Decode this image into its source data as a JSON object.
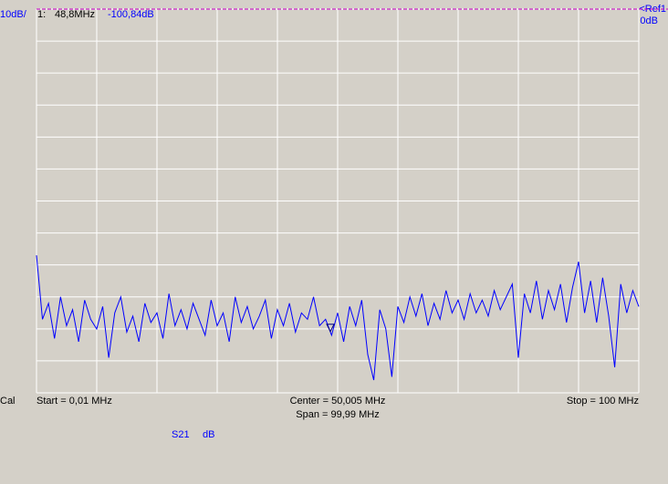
{
  "chart_data": {
    "type": "line",
    "scale_label": "10dB/",
    "ref_label": "<Ref1",
    "ref_value_label": "0dB",
    "ref_level": 0,
    "status": "Cal",
    "start_label": "Start = 0,01 MHz",
    "center_label": "Center = 50,005 MHz",
    "span_label": "Span = 99,99 MHz",
    "stop_label": "Stop = 100 MHz",
    "marker": {
      "label": "1:",
      "x": 48.8,
      "x_label": "48,8MHz",
      "y": -100.84,
      "y_label": "-100,84dB"
    },
    "xlim": [
      0.01,
      100
    ],
    "ylim": [
      -120,
      0
    ],
    "xticks": [
      0.01,
      10.009,
      20.008,
      30.007,
      40.006,
      50.005,
      60.004,
      70.003,
      80.002,
      90.001,
      100
    ],
    "yticks": [
      -120,
      -110,
      -100,
      -90,
      -80,
      -70,
      -60,
      -50,
      -40,
      -30,
      -20,
      -10,
      0
    ],
    "grid": true,
    "x": [
      0.01,
      1,
      2,
      3,
      4,
      5,
      6,
      7,
      8,
      9,
      10,
      11,
      12,
      13,
      14,
      15,
      16,
      17,
      18,
      19,
      20,
      21,
      22,
      23,
      24,
      25,
      26,
      27,
      28,
      29,
      30,
      31,
      32,
      33,
      34,
      35,
      36,
      37,
      38,
      39,
      40,
      41,
      42,
      43,
      44,
      45,
      46,
      47,
      48,
      49,
      50,
      51,
      52,
      53,
      54,
      55,
      56,
      57,
      58,
      59,
      60,
      61,
      62,
      63,
      64,
      65,
      66,
      67,
      68,
      69,
      70,
      71,
      72,
      73,
      74,
      75,
      76,
      77,
      78,
      79,
      80,
      81,
      82,
      83,
      84,
      85,
      86,
      87,
      88,
      89,
      90,
      91,
      92,
      93,
      94,
      95,
      96,
      97,
      98,
      99,
      100
    ],
    "series": [
      {
        "name": "S21",
        "unit": "dB",
        "color": "#0000ff",
        "values": [
          -77,
          -97,
          -92,
          -103,
          -90,
          -99,
          -94,
          -104,
          -91,
          -97,
          -100,
          -93,
          -109,
          -95,
          -90,
          -101,
          -96,
          -104,
          -92,
          -98,
          -95,
          -103,
          -89,
          -99,
          -94,
          -100,
          -92,
          -97,
          -102,
          -91,
          -99,
          -95,
          -104,
          -90,
          -98,
          -93,
          -100,
          -96,
          -91,
          -103,
          -94,
          -99,
          -92,
          -101,
          -95,
          -97,
          -90,
          -99,
          -97,
          -102,
          -95,
          -104,
          -93,
          -99,
          -91,
          -108,
          -116,
          -94,
          -100,
          -115,
          -93,
          -98,
          -90,
          -96,
          -89,
          -99,
          -92,
          -97,
          -88,
          -95,
          -91,
          -97,
          -89,
          -95,
          -91,
          -96,
          -88,
          -94,
          -90,
          -86,
          -109,
          -89,
          -95,
          -85,
          -97,
          -88,
          -94,
          -86,
          -98,
          -87,
          -79,
          -95,
          -85,
          -98,
          -84,
          -96,
          -112,
          -86,
          -95,
          -88,
          -93
        ]
      }
    ]
  }
}
